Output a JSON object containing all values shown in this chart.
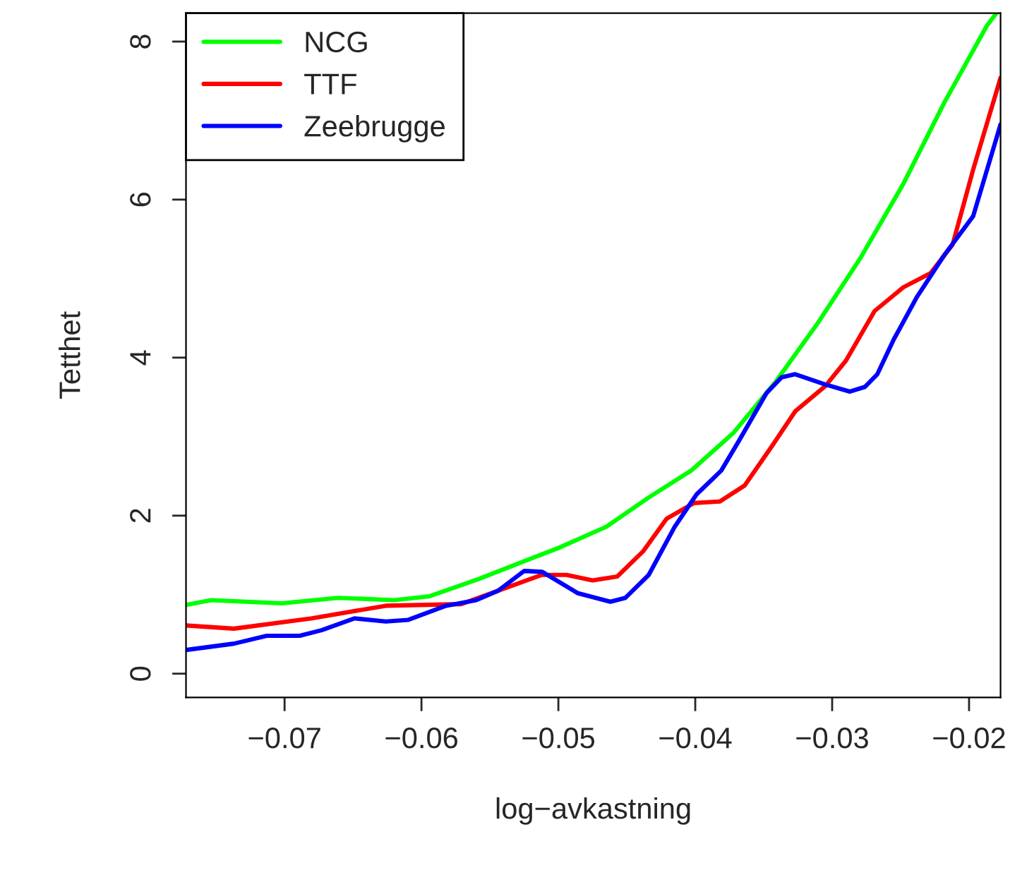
{
  "chart_data": {
    "type": "line",
    "xlabel": "log−avkastning",
    "ylabel": "Tetthet",
    "xlim": [
      -0.0772,
      -0.0177
    ],
    "ylim": [
      -0.3,
      8.36
    ],
    "xticks": [
      {
        "value": -0.07,
        "label": "−0.07"
      },
      {
        "value": -0.06,
        "label": "−0.06"
      },
      {
        "value": -0.05,
        "label": "−0.05"
      },
      {
        "value": -0.04,
        "label": "−0.04"
      },
      {
        "value": -0.03,
        "label": "−0.03"
      },
      {
        "value": -0.02,
        "label": "−0.02"
      }
    ],
    "yticks": [
      0,
      2,
      4,
      6,
      8
    ],
    "grid": false,
    "legend": "top left",
    "line_style": "solid",
    "marker": "none",
    "series": [
      {
        "name": "NCG",
        "color": "#00ff00",
        "x": [
          -0.0772,
          -0.07536,
          -0.0702,
          -0.0661,
          -0.062,
          -0.0594,
          -0.0558,
          -0.0527,
          -0.05,
          -0.0465,
          -0.0434,
          -0.0403,
          -0.0372,
          -0.0341,
          -0.031,
          -0.0279,
          -0.0248,
          -0.0218,
          -0.0187,
          -0.018
        ],
        "values": [
          0.87,
          0.93,
          0.89,
          0.96,
          0.93,
          0.98,
          1.2,
          1.41,
          1.59,
          1.86,
          2.23,
          2.57,
          3.05,
          3.7,
          4.45,
          5.27,
          6.2,
          7.23,
          8.2,
          8.36
        ]
      },
      {
        "name": "TTF",
        "color": "#ff0000",
        "x": [
          -0.0772,
          -0.0737,
          -0.068,
          -0.0626,
          -0.0571,
          -0.0512,
          -0.0494,
          -0.0475,
          -0.0457,
          -0.0438,
          -0.0421,
          -0.0401,
          -0.0382,
          -0.0364,
          -0.0344,
          -0.0327,
          -0.0305,
          -0.029,
          -0.0269,
          -0.0248,
          -0.0228,
          -0.0212,
          -0.0197,
          -0.0177
        ],
        "values": [
          0.61,
          0.57,
          0.7,
          0.86,
          0.88,
          1.25,
          1.25,
          1.18,
          1.23,
          1.55,
          1.96,
          2.16,
          2.18,
          2.38,
          2.88,
          3.32,
          3.64,
          3.96,
          4.59,
          4.89,
          5.07,
          5.43,
          6.38,
          7.54
        ]
      },
      {
        "name": "Zeebrugge",
        "color": "#0000ff",
        "x": [
          -0.0772,
          -0.0737,
          -0.0713,
          -0.0689,
          -0.0673,
          -0.0649,
          -0.0626,
          -0.061,
          -0.0582,
          -0.056,
          -0.0544,
          -0.0525,
          -0.0512,
          -0.0486,
          -0.0462,
          -0.0451,
          -0.0434,
          -0.0415,
          -0.0399,
          -0.0381,
          -0.0368,
          -0.0348,
          -0.0337,
          -0.0327,
          -0.0305,
          -0.0287,
          -0.0276,
          -0.0267,
          -0.0255,
          -0.0238,
          -0.0218,
          -0.0197,
          -0.0177
        ],
        "values": [
          0.3,
          0.38,
          0.48,
          0.48,
          0.55,
          0.7,
          0.66,
          0.68,
          0.86,
          0.93,
          1.05,
          1.3,
          1.29,
          1.02,
          0.91,
          0.96,
          1.25,
          1.86,
          2.27,
          2.57,
          2.95,
          3.55,
          3.75,
          3.79,
          3.66,
          3.57,
          3.63,
          3.79,
          4.23,
          4.77,
          5.3,
          5.79,
          6.95
        ]
      }
    ]
  }
}
